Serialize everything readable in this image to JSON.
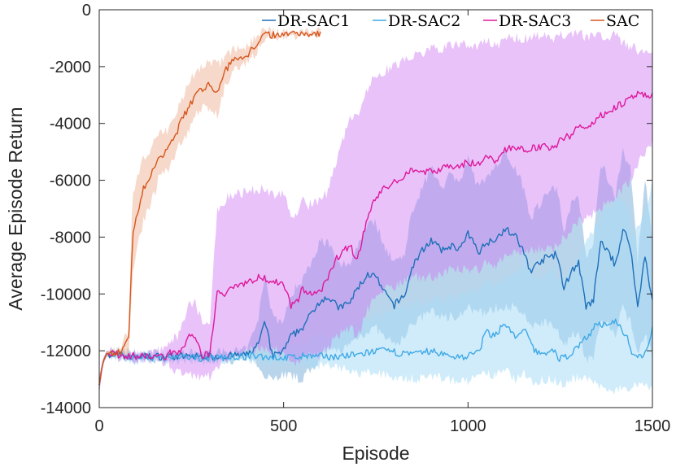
{
  "chart_data": {
    "type": "line",
    "title": "",
    "xlabel": "Episode",
    "ylabel": "Average Episode Return",
    "xlim": [
      0,
      1500
    ],
    "ylim": [
      -14000,
      0
    ],
    "xticks": [
      0,
      500,
      1000,
      1500
    ],
    "yticks": [
      0,
      -2000,
      -4000,
      -6000,
      -8000,
      -10000,
      -12000,
      -14000
    ],
    "grid": false,
    "legend_position": "top-right",
    "legend_orientation": "horizontal",
    "series": [
      {
        "name": "DR-SAC1",
        "color": "#1f6fb9",
        "band_color": "#7fb3db",
        "x": [
          0,
          10,
          20,
          100,
          200,
          300,
          400,
          430,
          450,
          470,
          500,
          520,
          550,
          570,
          600,
          620,
          650,
          680,
          700,
          730,
          750,
          770,
          800,
          830,
          850,
          880,
          900,
          930,
          950,
          980,
          1000,
          1030,
          1050,
          1080,
          1100,
          1130,
          1150,
          1170,
          1200,
          1220,
          1240,
          1260,
          1280,
          1300,
          1320,
          1340,
          1360,
          1380,
          1400,
          1420,
          1440,
          1460,
          1480,
          1500
        ],
        "mean": [
          -13200,
          -12400,
          -12100,
          -12200,
          -12200,
          -12200,
          -12150,
          -11800,
          -11000,
          -12200,
          -12000,
          -11500,
          -11200,
          -10800,
          -10200,
          -10100,
          -10500,
          -10300,
          -9800,
          -9300,
          -9400,
          -9900,
          -10400,
          -10000,
          -9000,
          -8400,
          -8100,
          -8500,
          -8300,
          -8400,
          -7900,
          -8500,
          -8200,
          -8000,
          -7700,
          -8000,
          -8500,
          -9200,
          -8800,
          -8700,
          -8600,
          -9800,
          -9200,
          -8900,
          -10500,
          -10200,
          -8200,
          -8500,
          -9000,
          -7700,
          -8300,
          -10500,
          -8600,
          -10300
        ],
        "lower": [
          -13500,
          -12500,
          -12200,
          -12300,
          -12300,
          -12300,
          -12300,
          -12500,
          -12800,
          -13000,
          -12800,
          -12900,
          -13000,
          -12700,
          -12300,
          -12000,
          -12000,
          -11800,
          -11500,
          -11300,
          -11200,
          -11500,
          -11800,
          -11500,
          -11000,
          -10800,
          -10600,
          -10800,
          -10800,
          -10700,
          -10500,
          -10700,
          -10600,
          -10500,
          -10400,
          -10500,
          -10800,
          -11100,
          -11000,
          -11000,
          -11100,
          -11900,
          -11500,
          -11300,
          -12300,
          -12200,
          -11000,
          -11100,
          -11400,
          -10500,
          -11000,
          -12200,
          -11300,
          -12300
        ],
        "upper": [
          -12900,
          -12300,
          -12000,
          -12100,
          -12100,
          -12100,
          -12000,
          -11000,
          -9200,
          -10800,
          -11000,
          -10000,
          -9500,
          -9000,
          -8100,
          -8200,
          -9000,
          -8900,
          -8300,
          -7400,
          -7500,
          -8200,
          -8900,
          -8500,
          -7000,
          -6100,
          -5600,
          -6200,
          -5800,
          -6000,
          -5300,
          -6300,
          -5800,
          -5500,
          -5000,
          -5600,
          -6200,
          -7300,
          -6700,
          -6400,
          -6200,
          -7700,
          -6900,
          -6500,
          -8700,
          -8200,
          -5400,
          -5900,
          -6600,
          -4900,
          -5600,
          -8800,
          -5900,
          -8300
        ]
      },
      {
        "name": "DR-SAC2",
        "color": "#3fa9e6",
        "band_color": "#a9dcf5",
        "x": [
          0,
          10,
          20,
          100,
          200,
          300,
          400,
          450,
          500,
          550,
          600,
          650,
          700,
          750,
          800,
          850,
          900,
          950,
          1000,
          1030,
          1050,
          1070,
          1100,
          1130,
          1150,
          1180,
          1200,
          1230,
          1250,
          1280,
          1300,
          1330,
          1350,
          1380,
          1400,
          1430,
          1450,
          1480,
          1500
        ],
        "mean": [
          -13200,
          -12400,
          -12100,
          -12250,
          -12250,
          -12250,
          -12200,
          -12200,
          -12250,
          -12200,
          -12200,
          -12200,
          -12150,
          -12000,
          -12050,
          -12150,
          -12000,
          -12200,
          -12200,
          -12000,
          -11300,
          -11500,
          -11000,
          -11600,
          -11200,
          -12000,
          -12100,
          -12000,
          -12300,
          -12100,
          -11800,
          -11400,
          -11000,
          -11200,
          -10900,
          -11500,
          -12200,
          -12100,
          -11200
        ],
        "lower": [
          -13500,
          -12500,
          -12200,
          -12350,
          -12350,
          -12350,
          -12300,
          -12350,
          -12400,
          -12450,
          -12500,
          -12600,
          -12800,
          -12800,
          -12900,
          -13000,
          -12900,
          -13000,
          -13100,
          -12900,
          -12800,
          -12900,
          -12700,
          -13000,
          -12800,
          -13100,
          -13000,
          -13000,
          -13200,
          -13000,
          -12900,
          -13100,
          -13200,
          -13300,
          -13400,
          -13300,
          -13200,
          -13100,
          -13300
        ],
        "upper": [
          -12900,
          -12300,
          -12000,
          -12150,
          -12150,
          -12150,
          -12100,
          -12000,
          -11900,
          -11700,
          -11500,
          -11300,
          -11000,
          -10800,
          -10600,
          -10400,
          -10200,
          -10100,
          -10000,
          -9800,
          -9600,
          -9700,
          -9400,
          -9200,
          -9000,
          -9300,
          -9400,
          -9100,
          -9500,
          -9200,
          -8800,
          -8000,
          -7500,
          -7000,
          -6500,
          -6900,
          -8000,
          -7200,
          -6100
        ]
      },
      {
        "name": "DR-SAC3",
        "color": "#e0189b",
        "band_color": "#cc77f2",
        "x": [
          0,
          10,
          20,
          100,
          180,
          200,
          220,
          240,
          260,
          280,
          300,
          310,
          320,
          340,
          360,
          400,
          440,
          480,
          500,
          520,
          540,
          550,
          560,
          600,
          620,
          640,
          660,
          680,
          700,
          720,
          740,
          760,
          780,
          800,
          830,
          850,
          880,
          900,
          950,
          1000,
          1030,
          1050,
          1080,
          1100,
          1150,
          1200,
          1230,
          1250,
          1280,
          1300,
          1330,
          1350,
          1380,
          1400,
          1420,
          1440,
          1460,
          1480,
          1500
        ],
        "mean": [
          -13200,
          -12400,
          -12100,
          -12200,
          -12200,
          -12000,
          -12100,
          -11500,
          -11600,
          -12200,
          -12100,
          -11000,
          -10000,
          -10000,
          -9700,
          -9600,
          -9400,
          -9600,
          -9600,
          -10400,
          -10200,
          -9800,
          -10000,
          -9900,
          -9500,
          -8800,
          -8500,
          -8300,
          -8800,
          -7700,
          -6800,
          -6500,
          -6200,
          -6100,
          -5800,
          -5600,
          -5700,
          -5700,
          -5500,
          -5400,
          -5400,
          -5200,
          -5300,
          -4900,
          -4900,
          -4800,
          -4900,
          -4600,
          -4400,
          -4100,
          -4100,
          -3800,
          -3600,
          -3400,
          -3300,
          -3150,
          -3000,
          -3050,
          -2950
        ],
        "lower": [
          -13500,
          -12500,
          -12200,
          -12300,
          -12400,
          -12700,
          -12800,
          -12800,
          -12900,
          -13000,
          -12900,
          -12700,
          -12500,
          -12400,
          -12200,
          -12000,
          -11900,
          -12000,
          -12100,
          -12500,
          -12400,
          -12100,
          -12200,
          -12200,
          -11900,
          -11500,
          -11300,
          -11200,
          -11500,
          -10800,
          -10200,
          -10000,
          -9800,
          -9700,
          -9500,
          -9400,
          -9400,
          -9400,
          -9200,
          -9100,
          -9100,
          -8900,
          -9000,
          -8600,
          -8500,
          -8400,
          -8400,
          -8100,
          -7800,
          -7400,
          -7300,
          -7000,
          -6800,
          -6500,
          -6300,
          -6000,
          -5500,
          -5000,
          -4600
        ],
        "upper": [
          -12900,
          -12300,
          -12000,
          -12100,
          -12000,
          -11600,
          -11400,
          -10400,
          -10300,
          -11000,
          -11200,
          -9000,
          -7000,
          -6700,
          -6500,
          -6400,
          -6300,
          -6500,
          -6400,
          -7300,
          -7100,
          -6700,
          -6900,
          -6700,
          -6400,
          -5400,
          -4600,
          -3900,
          -3700,
          -3000,
          -2500,
          -2300,
          -2100,
          -2000,
          -1800,
          -1600,
          -1500,
          -1400,
          -1300,
          -1200,
          -1300,
          -1100,
          -1300,
          -1000,
          -1000,
          -900,
          -1100,
          -900,
          -800,
          -800,
          -1000,
          -900,
          -900,
          -900,
          -1200,
          -1300,
          -1400,
          -1500,
          -1400
        ]
      },
      {
        "name": "SAC",
        "color": "#d6561c",
        "band_color": "#eeb9a0",
        "x": [
          0,
          10,
          20,
          40,
          60,
          80,
          90,
          100,
          110,
          120,
          130,
          140,
          150,
          160,
          180,
          200,
          220,
          240,
          260,
          280,
          300,
          320,
          340,
          360,
          380,
          400,
          420,
          440,
          450,
          500,
          550,
          600
        ],
        "mean": [
          -13200,
          -12400,
          -12100,
          -12100,
          -12050,
          -11600,
          -8000,
          -7400,
          -6800,
          -6300,
          -6100,
          -5800,
          -5600,
          -5200,
          -5000,
          -4600,
          -4000,
          -3500,
          -3000,
          -2800,
          -2600,
          -2900,
          -2200,
          -1800,
          -1700,
          -1600,
          -1300,
          -1000,
          -900,
          -850,
          -820,
          -820
        ],
        "lower": [
          -13500,
          -12500,
          -12200,
          -12200,
          -12200,
          -12000,
          -9500,
          -8700,
          -8000,
          -7400,
          -7100,
          -6800,
          -6500,
          -6000,
          -5700,
          -5300,
          -4700,
          -4300,
          -3700,
          -3500,
          -3400,
          -3700,
          -2700,
          -2200,
          -2100,
          -1900,
          -1600,
          -1200,
          -1000,
          -900,
          -870,
          -870
        ],
        "upper": [
          -12900,
          -12300,
          -12000,
          -12000,
          -11900,
          -11200,
          -6500,
          -6000,
          -5600,
          -5200,
          -5100,
          -4800,
          -4700,
          -4400,
          -4300,
          -3900,
          -3300,
          -2700,
          -2200,
          -2000,
          -1800,
          -2000,
          -1700,
          -1400,
          -1300,
          -1300,
          -1000,
          -800,
          -800,
          -780,
          -770,
          -770
        ]
      }
    ]
  }
}
